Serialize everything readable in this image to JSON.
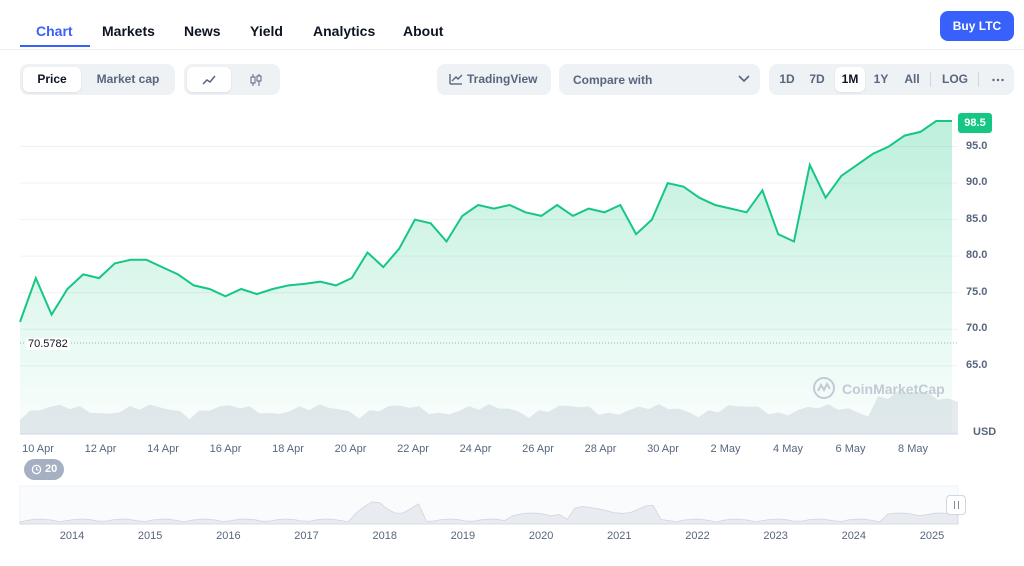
{
  "nav": {
    "tabs": [
      "Chart",
      "Markets",
      "News",
      "Yield",
      "Analytics",
      "About"
    ],
    "buy_label": "Buy LTC"
  },
  "toolbar": {
    "price_label": "Price",
    "market_cap_label": "Market cap",
    "line_icon": "line-chart-icon",
    "candle_icon": "candlestick-icon",
    "tradingview_label": "TradingView",
    "compare_label": "Compare with",
    "ranges": [
      "1D",
      "7D",
      "1M",
      "1Y",
      "All",
      "LOG"
    ],
    "selected_range": "1M",
    "more_icon": "more-dots-icon"
  },
  "chart": {
    "current_price_label": "98.5",
    "baseline_label": "70.5782",
    "currency_label": "USD",
    "watermark": "CoinMarketCap",
    "events_count": "20",
    "colors": {
      "line": "#16c784",
      "badge": "#16c784",
      "accent": "#3861fb"
    }
  },
  "chart_data": {
    "type": "area",
    "title": "",
    "xlabel": "",
    "ylabel": "USD",
    "ylim": [
      62.5,
      100
    ],
    "yticks": [
      "65.0",
      "70.0",
      "75.0",
      "80.0",
      "85.0",
      "90.0",
      "95.0"
    ],
    "xticks": [
      "10 Apr",
      "12 Apr",
      "14 Apr",
      "16 Apr",
      "18 Apr",
      "20 Apr",
      "22 Apr",
      "24 Apr",
      "26 Apr",
      "28 Apr",
      "30 Apr",
      "2 May",
      "4 May",
      "6 May",
      "8 May"
    ],
    "series": [
      {
        "x": [
          "10 Apr",
          "10 Apr",
          "11 Apr",
          "11 Apr",
          "12 Apr",
          "12 Apr",
          "13 Apr",
          "13 Apr",
          "14 Apr",
          "14 Apr",
          "15 Apr",
          "15 Apr",
          "16 Apr",
          "16 Apr",
          "17 Apr",
          "17 Apr",
          "18 Apr",
          "18 Apr",
          "19 Apr",
          "19 Apr",
          "20 Apr",
          "20 Apr",
          "21 Apr",
          "21 Apr",
          "22 Apr",
          "22 Apr",
          "23 Apr",
          "23 Apr",
          "24 Apr",
          "24 Apr",
          "25 Apr",
          "25 Apr",
          "26 Apr",
          "26 Apr",
          "27 Apr",
          "27 Apr",
          "28 Apr",
          "28 Apr",
          "29 Apr",
          "29 Apr",
          "30 Apr",
          "30 Apr",
          "1 May",
          "1 May",
          "2 May",
          "2 May",
          "3 May",
          "3 May",
          "4 May",
          "4 May",
          "5 May",
          "5 May",
          "6 May",
          "6 May",
          "7 May",
          "7 May",
          "8 May",
          "8 May",
          "9 May",
          "9 May"
        ],
        "values": [
          71.0,
          77.0,
          72.0,
          75.5,
          77.5,
          77.0,
          79.0,
          79.5,
          79.5,
          78.5,
          77.5,
          76.0,
          75.5,
          74.5,
          75.5,
          74.8,
          75.5,
          76.0,
          76.2,
          76.5,
          76.0,
          77.0,
          80.5,
          78.5,
          81.0,
          85.0,
          84.5,
          82.0,
          85.5,
          87.0,
          86.5,
          87.0,
          86.0,
          85.5,
          87.0,
          85.5,
          86.5,
          86.0,
          87.0,
          83.0,
          85.0,
          90.0,
          89.5,
          88.0,
          87.0,
          86.5,
          86.0,
          89.0,
          83.0,
          82.0,
          92.5,
          88.0,
          91.0,
          92.5,
          94.0,
          95.0,
          96.5,
          97.0,
          98.5,
          98.5
        ]
      }
    ],
    "volume_note": "",
    "navigator_years": [
      "2014",
      "2015",
      "2016",
      "2017",
      "2018",
      "2019",
      "2020",
      "2021",
      "2022",
      "2023",
      "2024",
      "2025"
    ]
  }
}
